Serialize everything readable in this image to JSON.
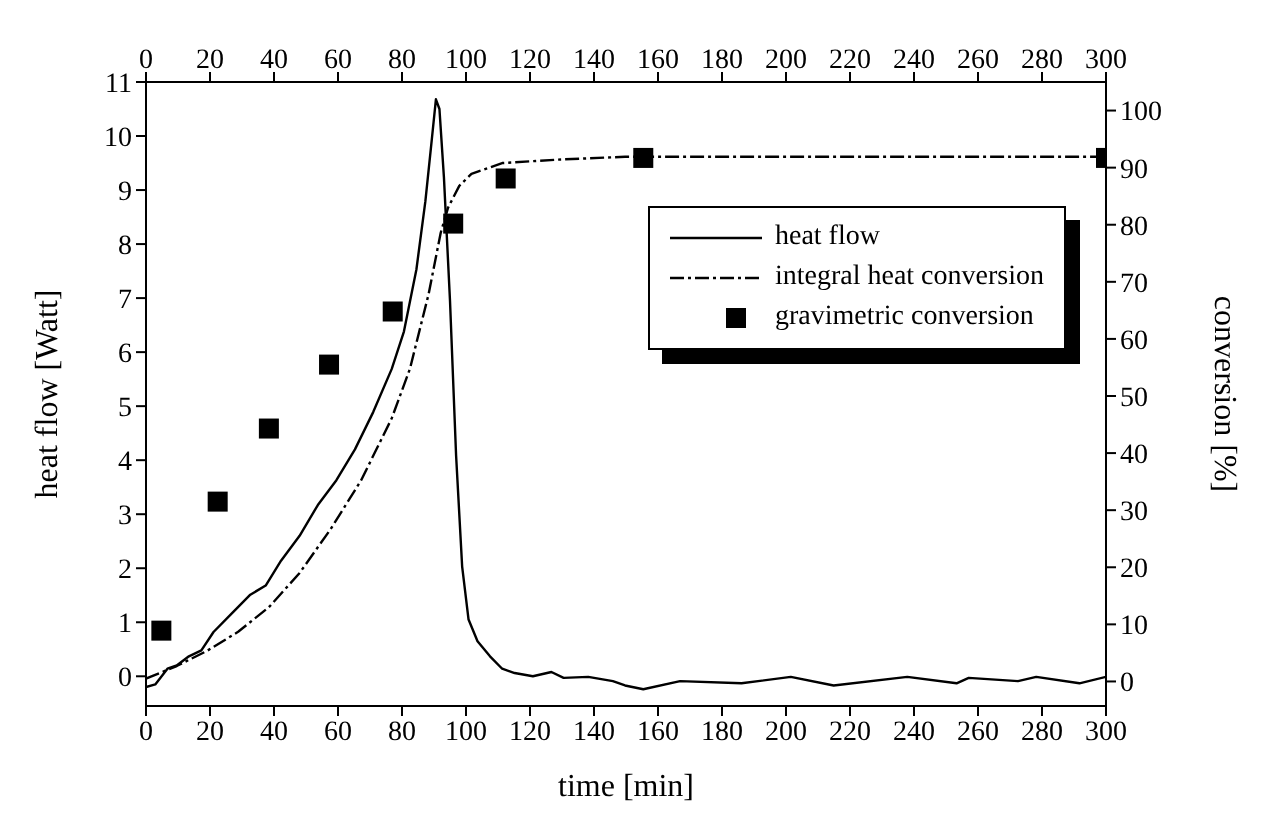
{
  "chart_data": {
    "type": "line",
    "xlabel": "time [min]",
    "ylabel": "heat flow [Watt]",
    "y2label": "conversion [%]",
    "xlim": [
      0,
      300
    ],
    "xticks": [
      0,
      20,
      40,
      60,
      80,
      100,
      120,
      140,
      160,
      180,
      200,
      220,
      240,
      260,
      280,
      300
    ],
    "x2lim": [
      0,
      300
    ],
    "x2ticks": [
      0,
      20,
      40,
      60,
      80,
      100,
      120,
      140,
      160,
      180,
      200,
      220,
      240,
      260,
      280,
      300
    ],
    "ylim": [
      -0.55,
      11
    ],
    "yticks": [
      0,
      1,
      2,
      3,
      4,
      5,
      6,
      7,
      8,
      9,
      10,
      11
    ],
    "y2lim": [
      -4.3,
      105
    ],
    "y2ticks": [
      0,
      10,
      20,
      30,
      40,
      50,
      60,
      70,
      80,
      90,
      100
    ],
    "legend": "top right",
    "series": [
      {
        "name": "heat flow",
        "line_style": "solid",
        "color": "#000000",
        "x": [
          0,
          2.9,
          6.7,
          9.6,
          13.4,
          17.3,
          21.1,
          26.9,
          32.6,
          37.4,
          42.2,
          48,
          53.7,
          59.5,
          65.3,
          71,
          76.8,
          80.6,
          84.5,
          87.3,
          89.3,
          90.6,
          91.7,
          93.1,
          95,
          96.9,
          98.8,
          100.8,
          103.6,
          107.5,
          111.3,
          115.2,
          120.9,
          126.7,
          130.5,
          138.2,
          145.9,
          149.7,
          155.4,
          166.9,
          186.1,
          201.5,
          214.9,
          237.9,
          253.3,
          257.1,
          272.5,
          278.2,
          291.7,
          300
        ],
        "values": [
          -0.2,
          -0.15,
          0.14,
          0.2,
          0.37,
          0.48,
          0.82,
          1.17,
          1.51,
          1.68,
          2.14,
          2.6,
          3.17,
          3.63,
          4.2,
          4.89,
          5.69,
          6.38,
          7.53,
          8.79,
          9.93,
          10.68,
          10.5,
          9.24,
          6.95,
          4.09,
          2.03,
          1.05,
          0.65,
          0.37,
          0.14,
          0.06,
          0.0,
          0.08,
          -0.03,
          -0.01,
          -0.09,
          -0.17,
          -0.24,
          -0.09,
          -0.13,
          -0.01,
          -0.17,
          -0.01,
          -0.13,
          -0.03,
          -0.09,
          -0.01,
          -0.13,
          -0.01
        ]
      },
      {
        "name": "integral heat conversion",
        "axis": "y2",
        "line_style": "dashdot",
        "color": "#000000",
        "x": [
          0,
          9.6,
          19.2,
          28.8,
          38.4,
          48,
          57.6,
          67.2,
          76.8,
          82.5,
          88.3,
          92.1,
          94.4,
          97.9,
          101.7,
          111.3,
          128.6,
          149.7,
          200,
          250,
          300
        ],
        "values": [
          0.5,
          2.7,
          5.4,
          8.7,
          13,
          19,
          26.6,
          35.2,
          46.1,
          54.8,
          67.8,
          78.6,
          83,
          86.8,
          88.9,
          90.8,
          91.4,
          91.9,
          91.9,
          91.9,
          91.9
        ]
      },
      {
        "name": "gravimetric conversion",
        "type": "scatter",
        "axis": "y2",
        "marker": "square",
        "color": "#000000",
        "x": [
          4.8,
          22.4,
          38.4,
          57.2,
          77.1,
          96,
          112.4,
          155.4,
          300
        ],
        "values": [
          8.9,
          31.5,
          44.3,
          55.5,
          64.8,
          80.2,
          88.1,
          91.7,
          91.7
        ]
      }
    ]
  }
}
